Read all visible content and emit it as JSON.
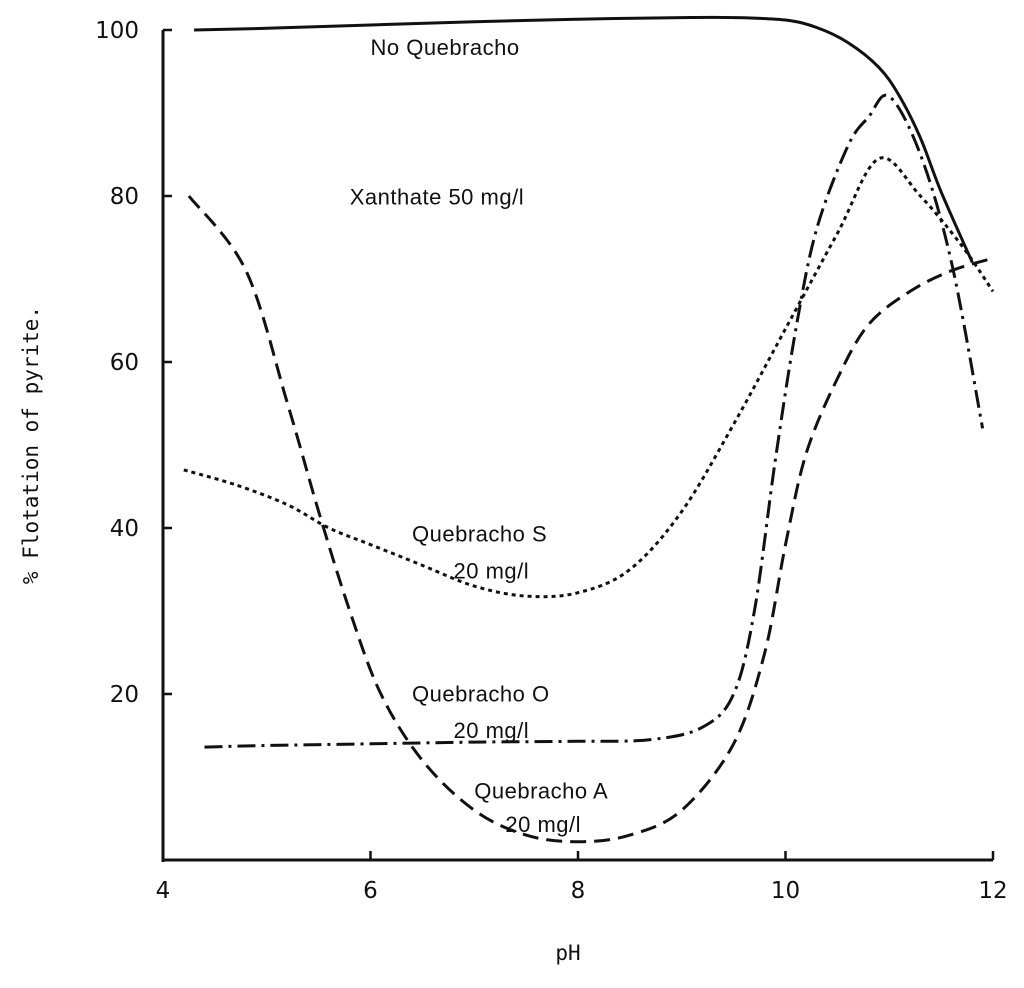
{
  "chart_data": {
    "type": "line",
    "title": "",
    "xlabel": "pH",
    "ylabel": "% Flotation of pyrite.",
    "xlim": [
      4,
      12
    ],
    "ylim": [
      0,
      100
    ],
    "x_ticks": [
      4,
      6,
      8,
      10,
      12
    ],
    "y_ticks": [
      20,
      40,
      60,
      80,
      100
    ],
    "grid": false,
    "legend": "none",
    "annotations": [
      {
        "text": "No Quebracho",
        "x": 6.0,
        "y": 97.0
      },
      {
        "text": "Xanthate 50 mg/l",
        "x": 5.8,
        "y": 79.0
      },
      {
        "text": "Quebracho S",
        "x": 6.4,
        "y": 38.4
      },
      {
        "text": "20 mg/l",
        "x": 6.8,
        "y": 33.9
      },
      {
        "text": "Quebracho O",
        "x": 6.4,
        "y": 19.1
      },
      {
        "text": "20 mg/l",
        "x": 6.8,
        "y": 14.7
      },
      {
        "text": "Quebracho A",
        "x": 7.0,
        "y": 7.4
      },
      {
        "text": "20 mg/l",
        "x": 7.3,
        "y": 3.4
      }
    ],
    "series": [
      {
        "name": "No Quebracho",
        "style": "solid",
        "x": [
          4.3,
          5,
          6,
          7,
          8,
          9,
          9.5,
          10,
          10.3,
          10.6,
          10.9,
          11.1,
          11.3,
          11.5,
          11.8
        ],
        "y": [
          100,
          100.2,
          100.6,
          101.0,
          101.3,
          101.5,
          101.5,
          101.2,
          100.3,
          98.5,
          95.5,
          92.0,
          87.0,
          80.5,
          72.0
        ]
      },
      {
        "name": "Quebracho S 20 mg/l",
        "style": "dotted",
        "x": [
          4.2,
          4.7,
          5.2,
          5.6,
          6.0,
          6.5,
          7.0,
          7.5,
          8.0,
          8.5,
          9.0,
          9.5,
          10.0,
          10.5,
          10.9,
          11.3,
          11.7,
          12.0
        ],
        "y": [
          47,
          45.2,
          42.8,
          40.0,
          38.0,
          35.5,
          33.0,
          31.8,
          32.2,
          35.0,
          42.0,
          52.5,
          64.0,
          75.5,
          84.5,
          80.0,
          74.0,
          68.5
        ]
      },
      {
        "name": "Quebracho O 20 mg/l",
        "style": "dash-dot",
        "x": [
          4.4,
          5,
          6,
          7,
          8,
          8.7,
          9.2,
          9.5,
          9.7,
          9.9,
          10.1,
          10.3,
          10.6,
          10.8,
          11.0,
          11.3,
          11.6,
          11.9
        ],
        "y": [
          13.6,
          13.8,
          14.0,
          14.2,
          14.3,
          14.5,
          16.0,
          20.0,
          30.0,
          48.0,
          64.0,
          76.0,
          86.0,
          89.5,
          92.0,
          85.0,
          72.0,
          52.0
        ]
      },
      {
        "name": "Quebracho A 20 mg/l",
        "style": "dashed",
        "x": [
          4.25,
          4.8,
          5.2,
          5.5,
          5.8,
          6.1,
          6.5,
          7.0,
          7.5,
          8.0,
          8.5,
          9.0,
          9.5,
          9.8,
          10.0,
          10.2,
          10.5,
          10.8,
          11.2,
          11.6,
          12.0
        ],
        "y": [
          80,
          71,
          55,
          42,
          30,
          20,
          12,
          6,
          3,
          2.2,
          3,
          6,
          14,
          25,
          38,
          49,
          58,
          64.5,
          68.5,
          71,
          72.5
        ]
      }
    ]
  }
}
